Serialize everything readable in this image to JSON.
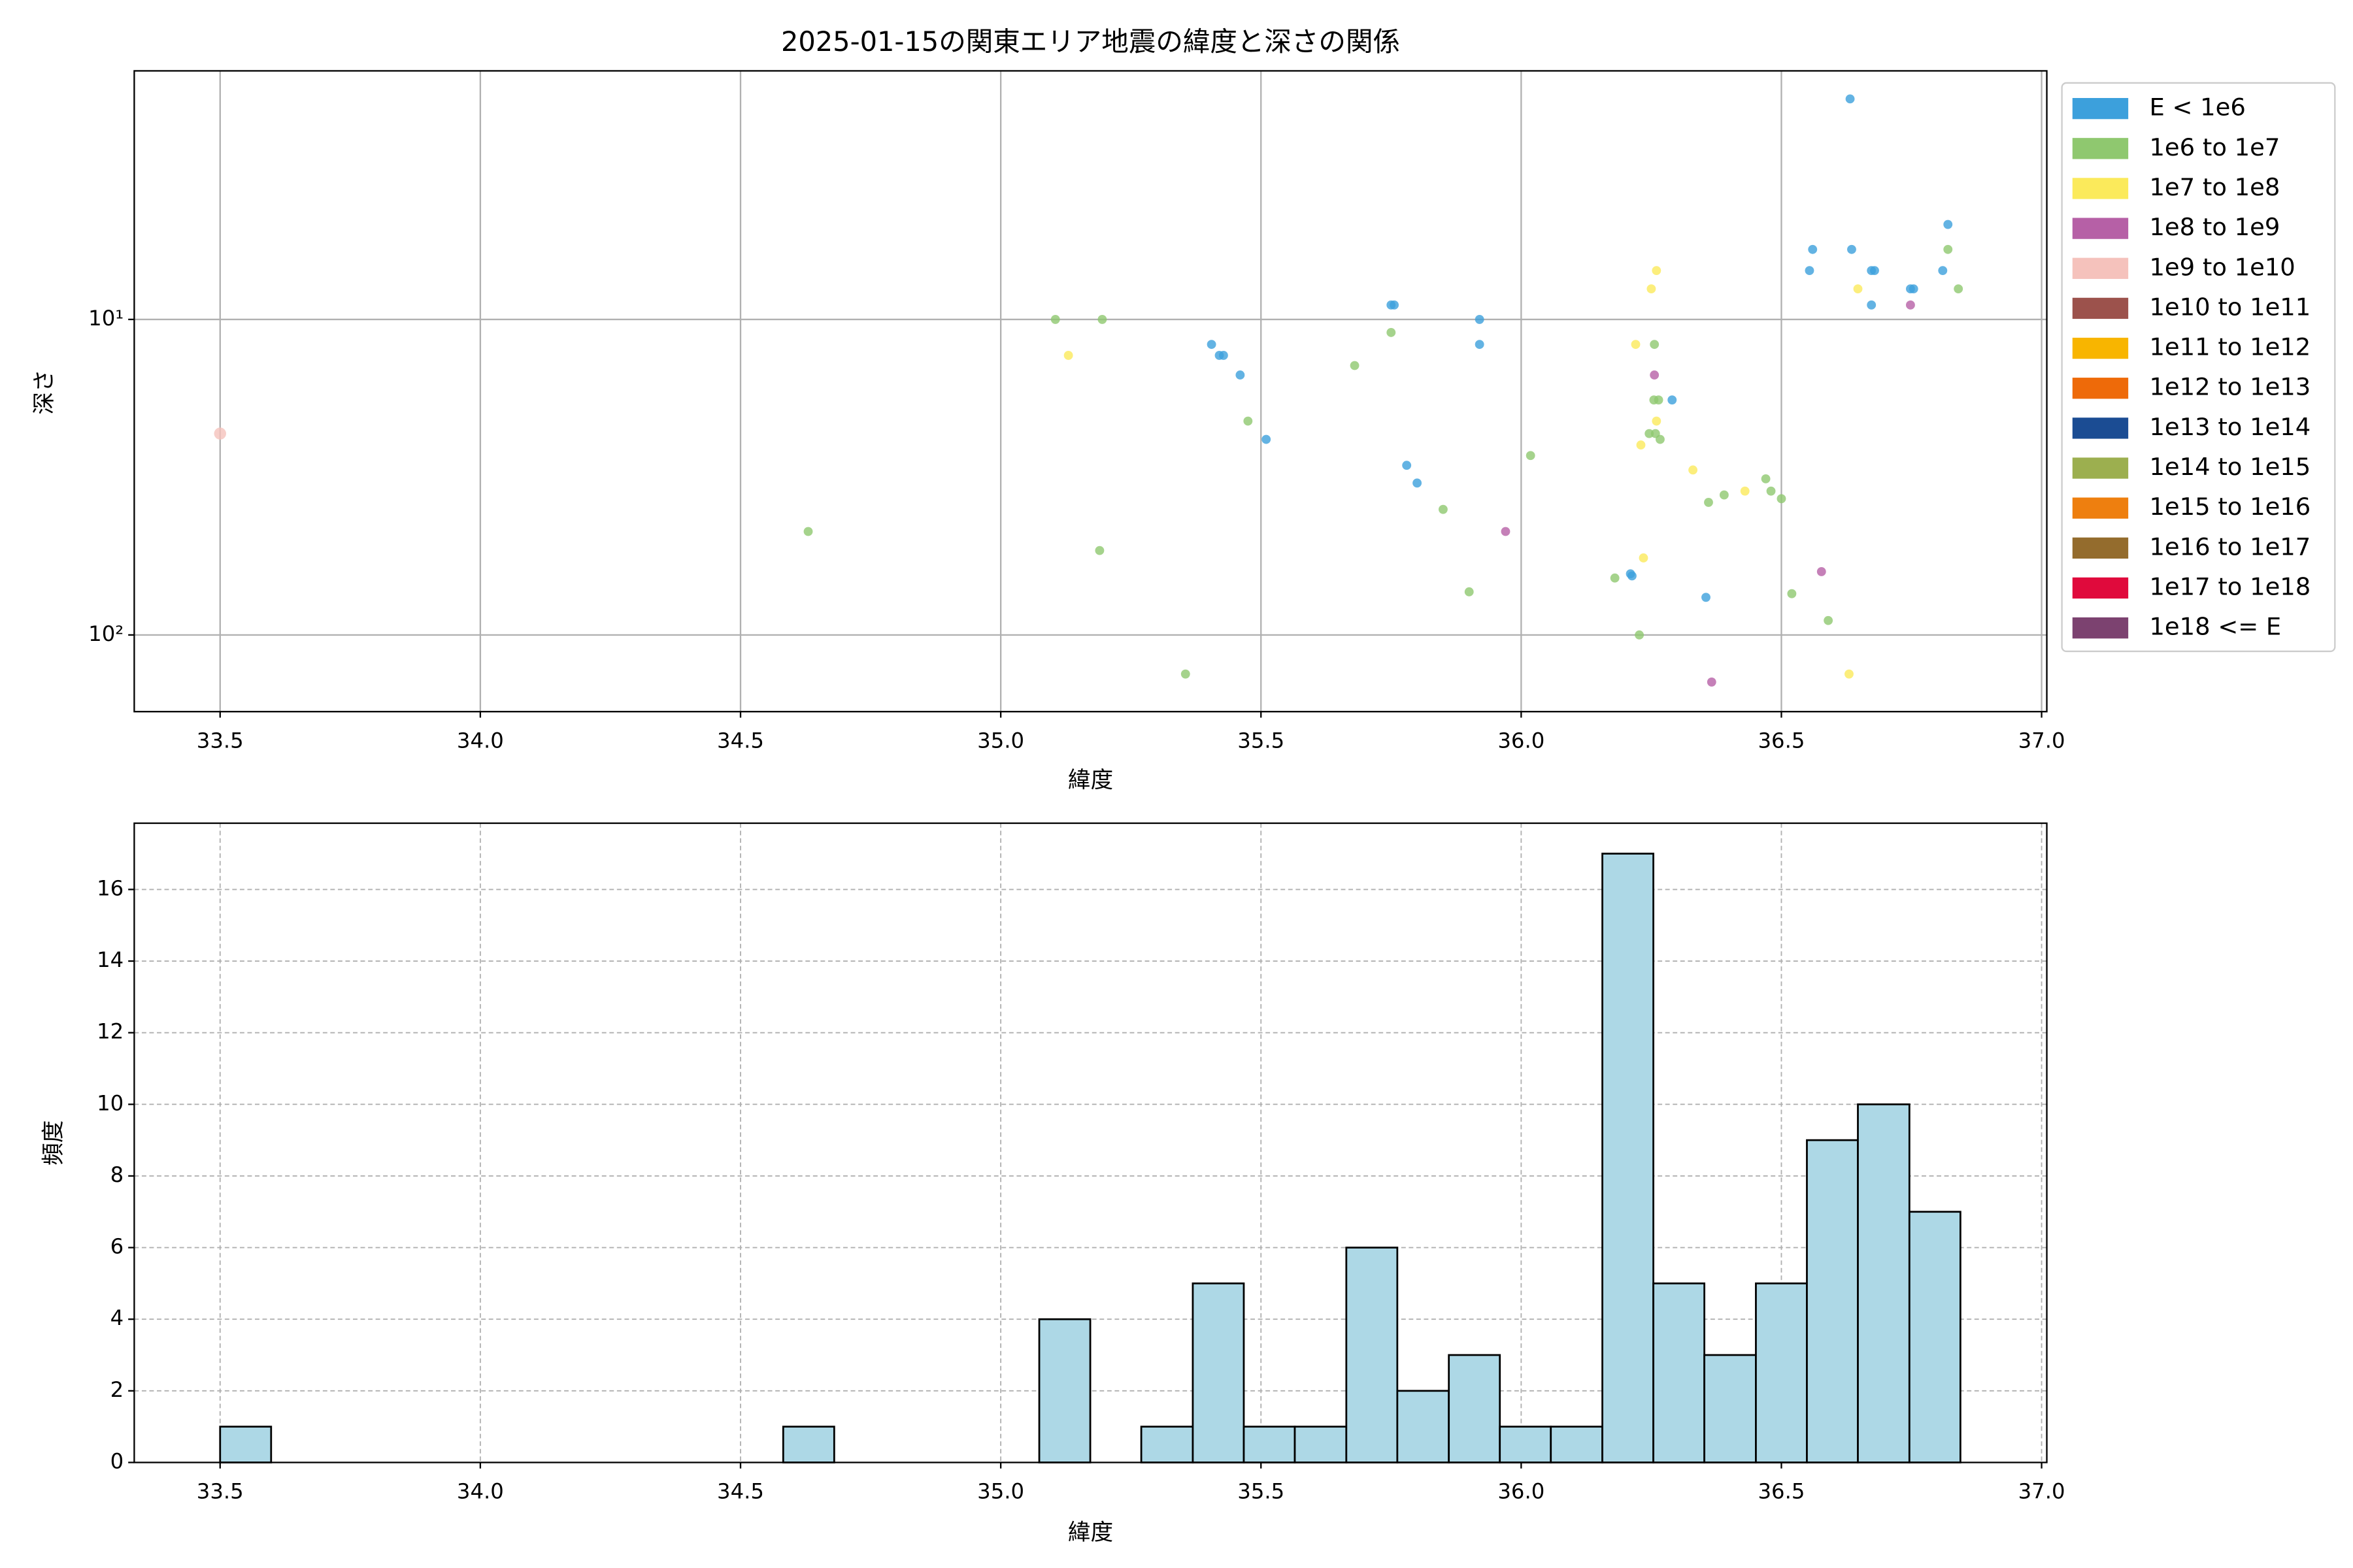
{
  "chart_data": [
    {
      "type": "scatter",
      "title": "2025-01-15の関東エリア地震の緯度と深さの関係",
      "xlabel": "緯度",
      "ylabel": "深さ",
      "xlim": [
        33.335,
        37.01
      ],
      "ylim": [
        1.63,
        175
      ],
      "y_inverted": true,
      "yscale": "log",
      "grid": true,
      "legend": "outside right",
      "xticks": [
        33.5,
        {
          "value": 34,
          "label": "34.0"
        },
        34.5,
        {
          "value": 35,
          "label": "35.0"
        },
        35.5,
        {
          "value": 36,
          "label": "36.0"
        },
        36.5,
        {
          "value": 37,
          "label": "37.0"
        }
      ],
      "yticks": [
        {
          "value": 10,
          "label": "10¹"
        },
        {
          "value": 100,
          "label": "10²"
        }
      ],
      "series": [
        {
          "name": "E < 1e6",
          "color": "#3ca0dc",
          "x": [
            36.632,
            36.56,
            36.635,
            36.554,
            36.673,
            36.679,
            36.82,
            36.81,
            36.748,
            36.754,
            36.673,
            35.75,
            35.756,
            35.92,
            35.92,
            35.405,
            35.42,
            35.428,
            35.46,
            35.51,
            35.78,
            35.8,
            36.29,
            36.21,
            36.213,
            36.355
          ],
          "y": [
            2.0,
            6.0,
            6.0,
            7.0,
            7.0,
            7.0,
            5.0,
            7.0,
            8.0,
            8.0,
            9.0,
            9.0,
            9.0,
            10,
            12,
            12,
            13,
            13,
            15,
            24,
            29,
            33,
            18,
            64,
            65,
            76
          ]
        },
        {
          "name": "1e6 to 1e7",
          "color": "#8fc86f",
          "x": [
            35.105,
            35.195,
            35.75,
            35.68,
            36.256,
            36.255,
            36.264,
            36.246,
            36.258,
            36.267,
            35.475,
            36.018,
            35.85,
            36.36,
            36.39,
            36.47,
            36.48,
            36.5,
            34.63,
            35.19,
            36.18,
            35.9,
            36.52,
            36.59,
            36.227,
            35.355,
            36.82,
            36.84
          ],
          "y": [
            10,
            10,
            11,
            14,
            12,
            18,
            18,
            23,
            23,
            24,
            21,
            27,
            40,
            38,
            36,
            32,
            35,
            37,
            47,
            54,
            66,
            73,
            74,
            90,
            100,
            133,
            6.0,
            8.0
          ]
        },
        {
          "name": "1e7 to 1e8",
          "color": "#fbea5b",
          "x": [
            36.26,
            36.25,
            36.647,
            35.13,
            36.22,
            36.26,
            36.23,
            36.33,
            36.43,
            36.235,
            36.63
          ],
          "y": [
            7.0,
            8.0,
            8.0,
            13,
            12,
            21,
            25,
            30,
            35,
            57,
            133
          ]
        },
        {
          "name": "1e8 to 1e9",
          "color": "#b660a6",
          "x": [
            36.748,
            36.256,
            35.97,
            36.577,
            36.366
          ],
          "y": [
            9.0,
            15,
            47,
            63,
            141
          ]
        },
        {
          "name": "1e9 to 1e10",
          "color": "#f5c2bc",
          "x": [
            33.5
          ],
          "y": [
            23
          ]
        },
        {
          "name": "1e10 to 1e11",
          "color": "#9c524c",
          "x": [],
          "y": []
        },
        {
          "name": "1e11 to 1e12",
          "color": "#f8b500",
          "x": [],
          "y": []
        },
        {
          "name": "1e12 to 1e13",
          "color": "#ee6a09",
          "x": [],
          "y": []
        },
        {
          "name": "1e13 to 1e14",
          "color": "#1b4c93",
          "x": [],
          "y": []
        },
        {
          "name": "1e14 to 1e15",
          "color": "#9caf4f",
          "x": [],
          "y": []
        },
        {
          "name": "1e15 to 1e16",
          "color": "#ee7f0f",
          "x": [],
          "y": []
        },
        {
          "name": "1e16 to 1e17",
          "color": "#946c2d",
          "x": [],
          "y": []
        },
        {
          "name": "1e17 to 1e18",
          "color": "#e00a3c",
          "x": [],
          "y": []
        },
        {
          "name": "1e18 <= E",
          "color": "#7c4270",
          "x": [],
          "y": []
        }
      ]
    },
    {
      "type": "histogram",
      "xlabel": "緯度",
      "ylabel": "頻度",
      "color": "#add8e6",
      "edgecolor": "#000000",
      "grid": "dashed",
      "xlim": [
        33.335,
        37.01
      ],
      "ylim": [
        0,
        17.85
      ],
      "xticks": [
        33.5,
        {
          "value": 34,
          "label": "34.0"
        },
        34.5,
        {
          "value": 35,
          "label": "35.0"
        },
        35.5,
        {
          "value": 36,
          "label": "36.0"
        },
        36.5,
        {
          "value": 37,
          "label": "37.0"
        }
      ],
      "yticks": [
        0,
        2,
        4,
        6,
        8,
        10,
        12,
        14,
        16
      ],
      "bins": [
        33.5,
        33.598,
        33.697,
        33.795,
        33.893,
        33.992,
        34.09,
        34.188,
        34.287,
        34.385,
        34.484,
        34.582,
        34.68,
        34.779,
        34.877,
        34.975,
        35.074,
        35.172,
        35.27,
        35.369,
        35.467,
        35.565,
        35.664,
        35.762,
        35.861,
        35.959,
        36.057,
        36.156,
        36.254,
        36.352,
        36.451,
        36.549,
        36.647,
        36.746,
        36.844
      ],
      "values": [
        1,
        0,
        0,
        0,
        0,
        0,
        0,
        0,
        0,
        0,
        0,
        1,
        0,
        0,
        0,
        0,
        4,
        0,
        1,
        5,
        1,
        1,
        6,
        2,
        3,
        1,
        1,
        17,
        5,
        3,
        5,
        9,
        10,
        7
      ]
    }
  ]
}
